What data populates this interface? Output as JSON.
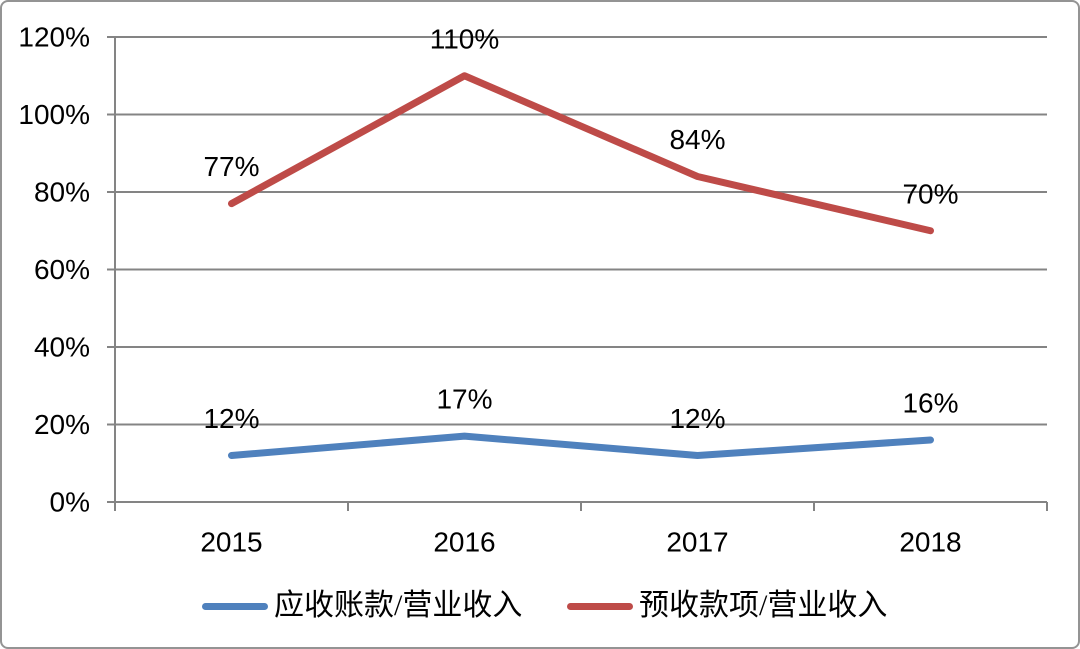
{
  "chart_data": {
    "type": "line",
    "title": "",
    "xlabel": "",
    "ylabel": "",
    "categories": [
      "2015",
      "2016",
      "2017",
      "2018"
    ],
    "series": [
      {
        "name": "应收账款/营业收入",
        "values_percent": [
          12,
          17,
          12,
          16
        ],
        "data_labels": [
          "12%",
          "17%",
          "12%",
          "16%"
        ],
        "color": "#4F81BD"
      },
      {
        "name": "预收款项/营业收入",
        "values_percent": [
          77,
          110,
          84,
          70
        ],
        "data_labels": [
          "77%",
          "110%",
          "84%",
          "70%"
        ],
        "color": "#BE4B48"
      }
    ],
    "y_axis": {
      "range_percent": [
        0,
        120
      ],
      "ticks_percent": [
        0,
        20,
        40,
        60,
        80,
        100,
        120
      ],
      "tick_labels": [
        "0%",
        "20%",
        "40%",
        "60%",
        "80%",
        "100%",
        "120%"
      ]
    },
    "grid": true,
    "legend_position": "bottom",
    "colors": {
      "grid_and_axis": "#848484",
      "text": "#000000",
      "background": "#FFFFFF",
      "frame_border": "#949494"
    }
  }
}
